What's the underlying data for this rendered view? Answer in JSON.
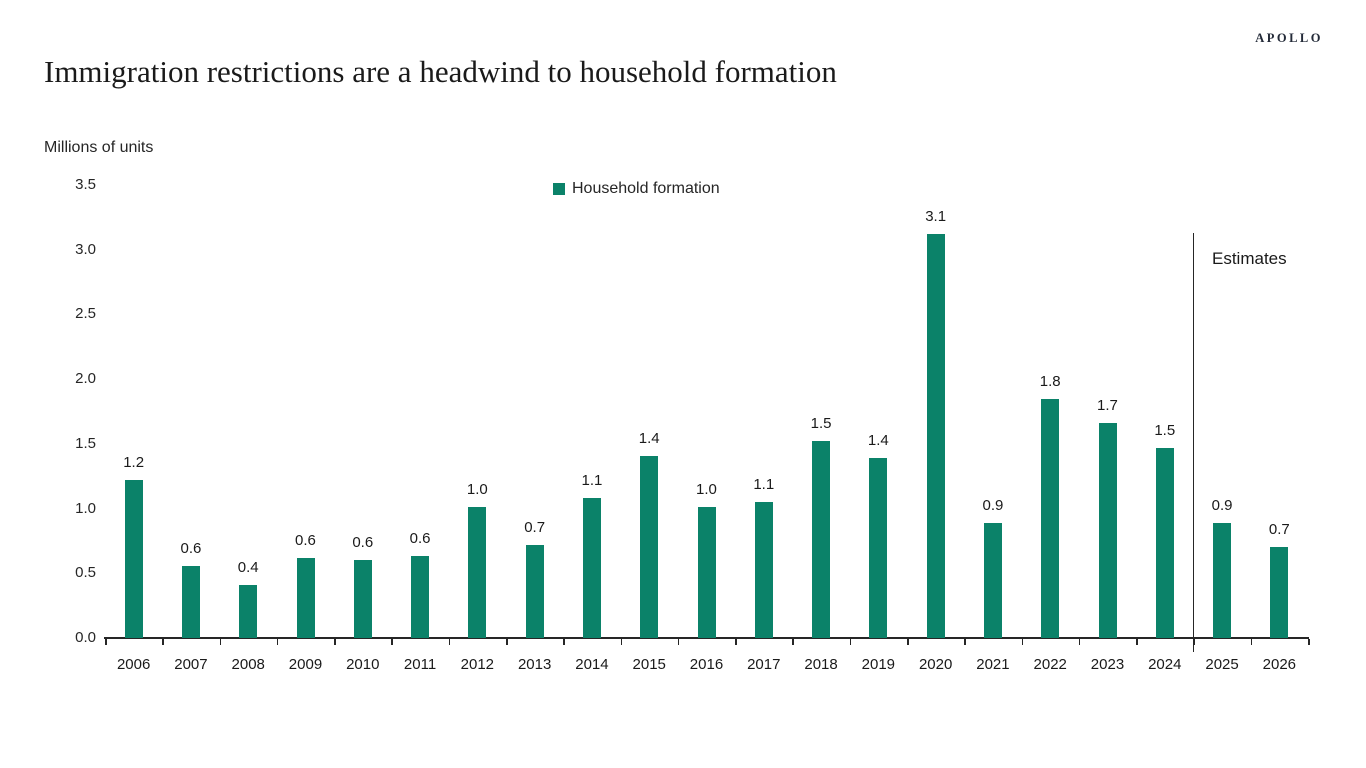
{
  "brand": {
    "logo_text": "APOLLO"
  },
  "header": {
    "title": "Immigration restrictions are a headwind to household formation"
  },
  "chart_data": {
    "type": "bar",
    "title": "Immigration restrictions are a headwind to household formation",
    "units_label": "Millions of units",
    "legend": {
      "label": "Household formation",
      "position": "top-center"
    },
    "bar_color": "#0B8269",
    "categories": [
      "2006",
      "2007",
      "2008",
      "2009",
      "2010",
      "2011",
      "2012",
      "2013",
      "2014",
      "2015",
      "2016",
      "2017",
      "2018",
      "2019",
      "2020",
      "2021",
      "2022",
      "2023",
      "2024",
      "2025",
      "2026"
    ],
    "values": [
      1.2,
      0.6,
      0.4,
      0.6,
      0.6,
      0.6,
      1.0,
      0.7,
      1.1,
      1.4,
      1.0,
      1.1,
      1.5,
      1.4,
      3.1,
      0.9,
      1.8,
      1.7,
      1.5,
      0.9,
      0.7
    ],
    "bar_labels": [
      "1.2",
      "0.6",
      "0.4",
      "0.6",
      "0.6",
      "0.6",
      "1.0",
      "0.7",
      "1.1",
      "1.4",
      "1.0",
      "1.1",
      "1.5",
      "1.4",
      "3.1",
      "0.9",
      "1.8",
      "1.7",
      "1.5",
      "0.9",
      "0.7"
    ],
    "render_heights": [
      1.22,
      0.56,
      0.41,
      0.62,
      0.6,
      0.63,
      1.01,
      0.72,
      1.08,
      1.41,
      1.01,
      1.05,
      1.52,
      1.39,
      3.12,
      0.89,
      1.85,
      1.66,
      1.47,
      0.89,
      0.7
    ],
    "xlabel": "",
    "ylabel": "",
    "ylim": [
      0,
      3.5
    ],
    "yticks": [
      "0.0",
      "0.5",
      "1.0",
      "1.5",
      "2.0",
      "2.5",
      "3.0",
      "3.5"
    ],
    "grid": false,
    "legend_position": "top-center",
    "annotation": {
      "label": "Estimates",
      "divider_before_category": "2025"
    }
  }
}
